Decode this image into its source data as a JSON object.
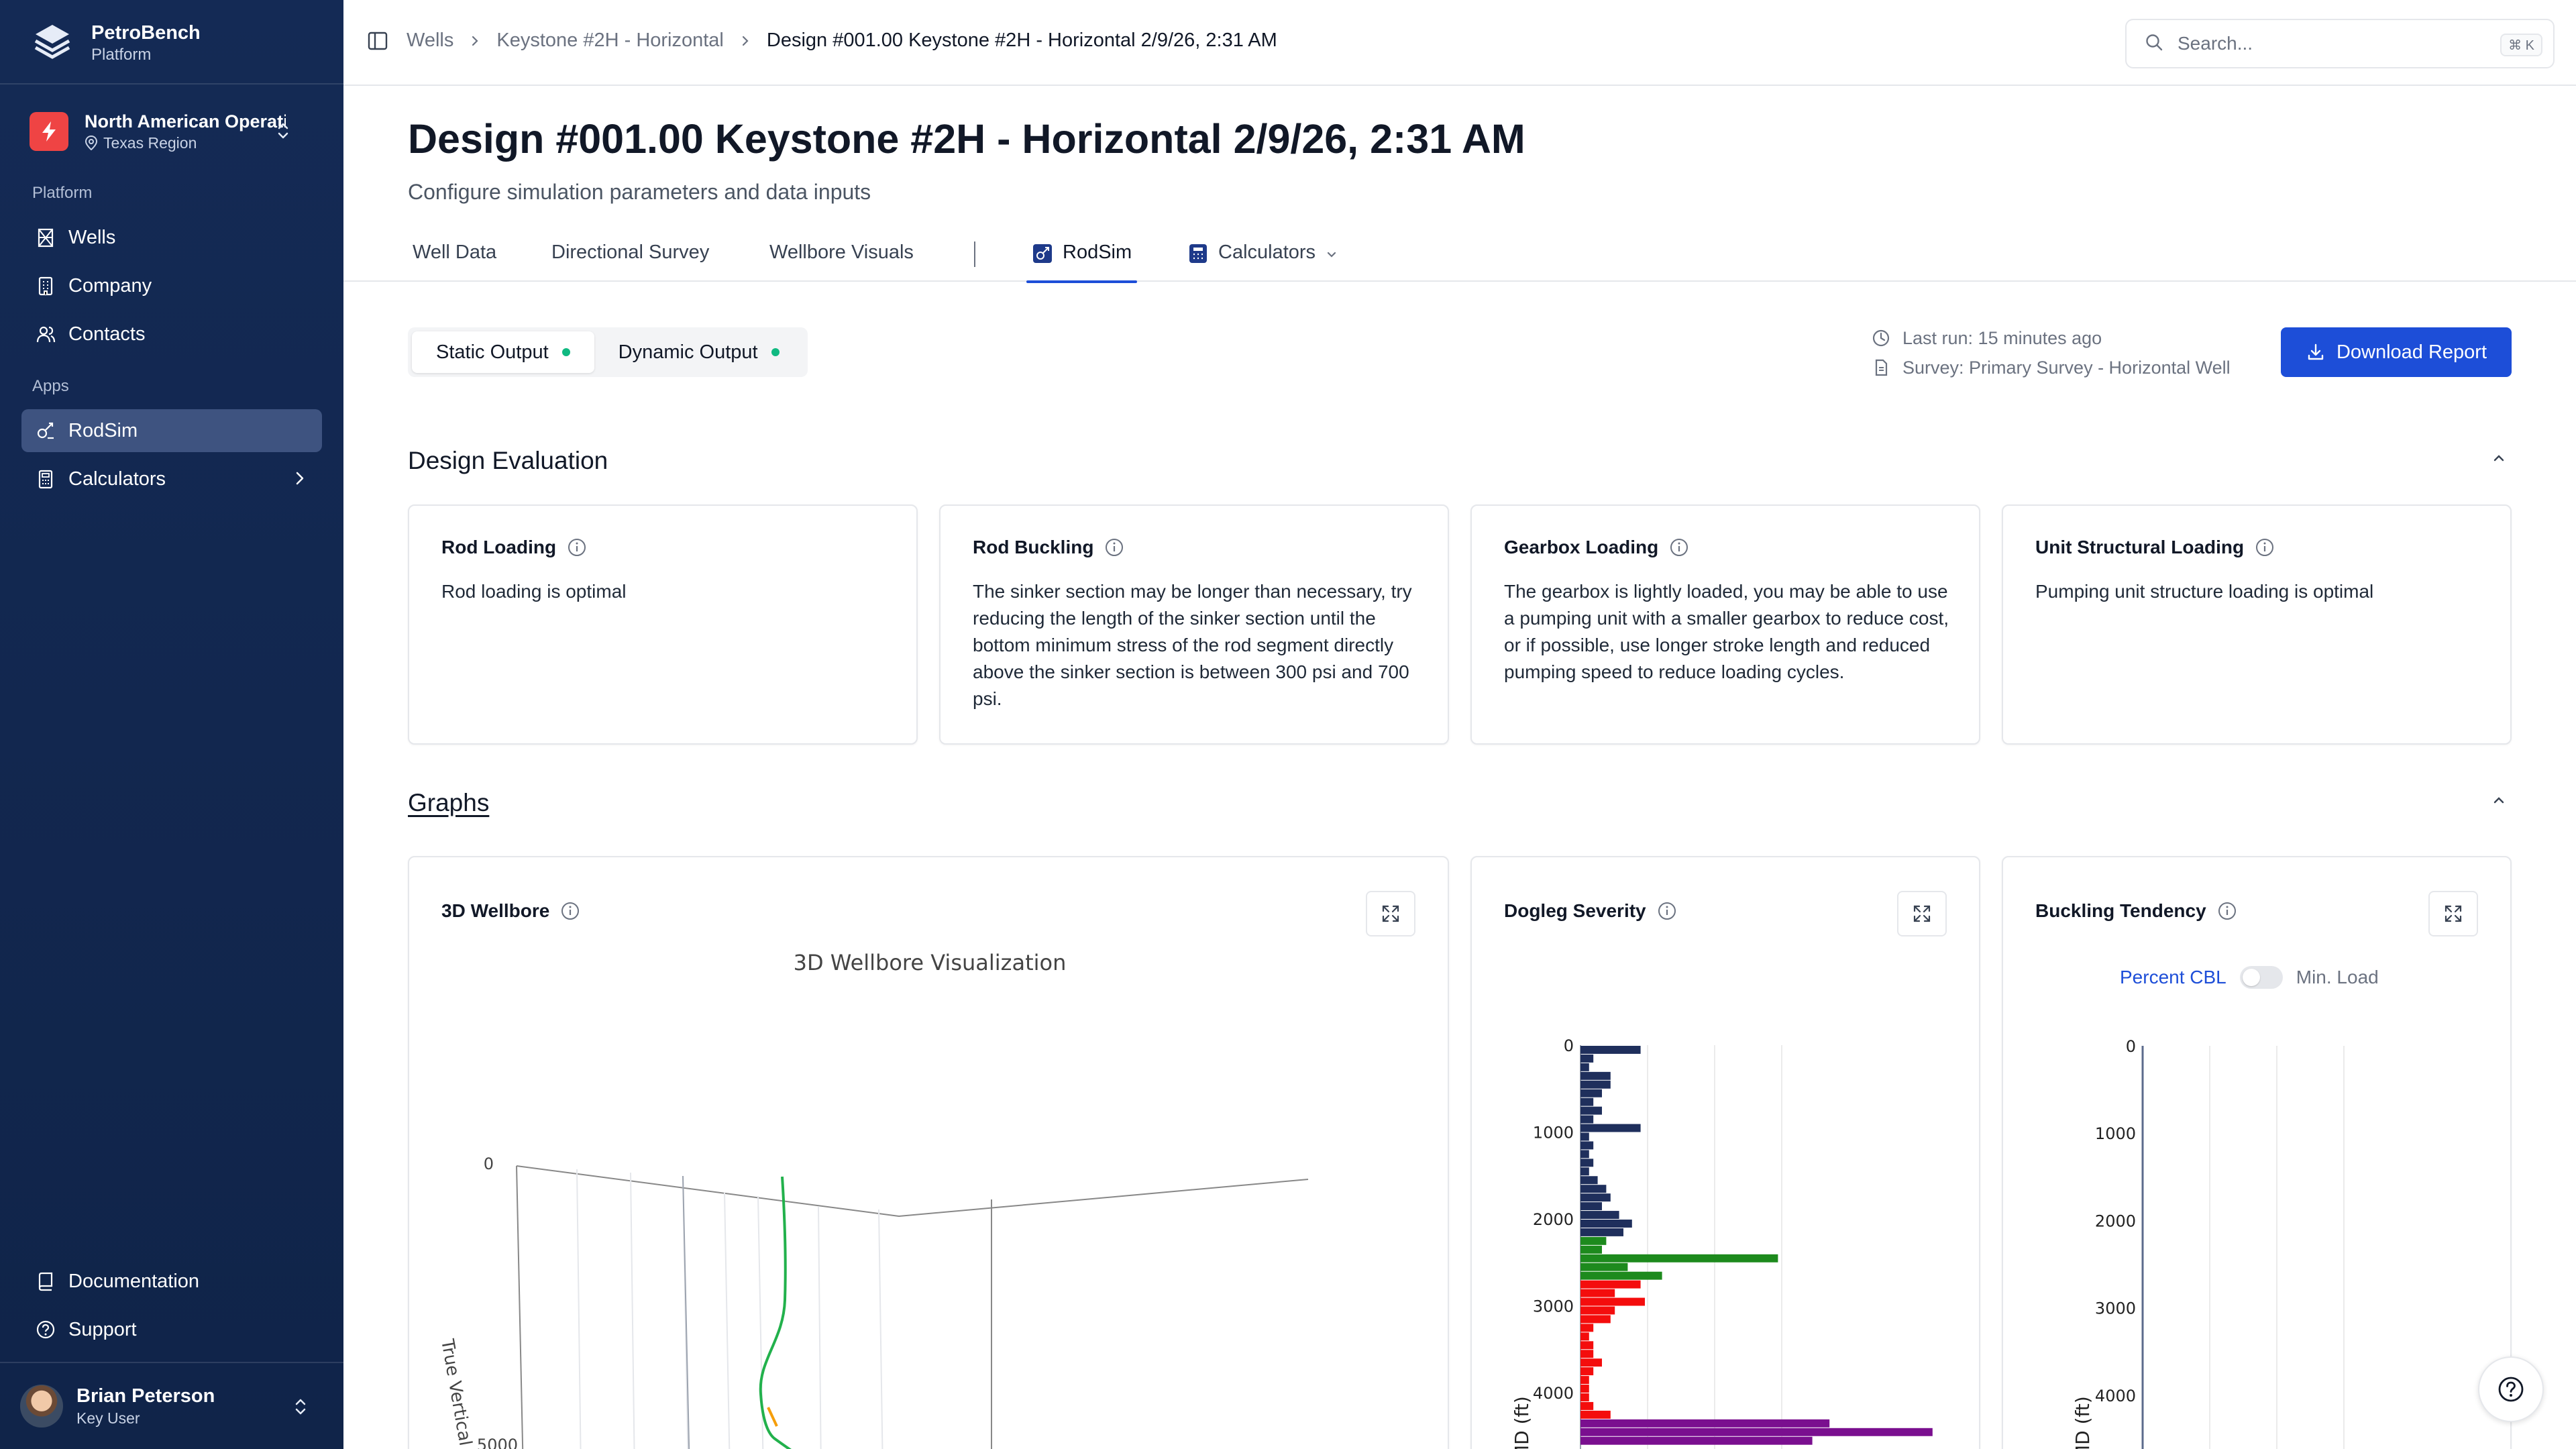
{
  "brand": {
    "name": "PetroBench",
    "subtitle": "Platform"
  },
  "org": {
    "name": "North American Operations",
    "region": "Texas Region"
  },
  "sidebar": {
    "platform_label": "Platform",
    "platform_items": [
      {
        "label": "Wells",
        "icon": "tower-icon"
      },
      {
        "label": "Company",
        "icon": "building-icon"
      },
      {
        "label": "Contacts",
        "icon": "users-icon"
      }
    ],
    "apps_label": "Apps",
    "app_items": [
      {
        "label": "RodSim",
        "icon": "rodsim-icon",
        "active": true
      },
      {
        "label": "Calculators",
        "icon": "calculator-icon",
        "has_submenu": true
      }
    ],
    "footer_items": [
      {
        "label": "Documentation",
        "icon": "book-icon"
      },
      {
        "label": "Support",
        "icon": "help-circle-icon"
      }
    ]
  },
  "user": {
    "name": "Brian Peterson",
    "role": "Key User"
  },
  "breadcrumb": [
    "Wells",
    "Keystone #2H - Horizontal",
    "Design #001.00 Keystone #2H - Horizontal 2/9/26, 2:31 AM"
  ],
  "search": {
    "placeholder": "Search...",
    "shortcut": "⌘ K"
  },
  "page": {
    "title": "Design #001.00 Keystone #2H - Horizontal 2/9/26, 2:31 AM",
    "subtitle": "Configure simulation parameters and data inputs"
  },
  "tabs": [
    {
      "label": "Well Data"
    },
    {
      "label": "Directional Survey"
    },
    {
      "label": "Wellbore Visuals"
    },
    {
      "label": "RodSim",
      "active": true
    },
    {
      "label": "Calculators",
      "dropdown": true
    }
  ],
  "output_toggle": [
    {
      "label": "Static Output",
      "selected": true,
      "status_color": "#10b981"
    },
    {
      "label": "Dynamic Output",
      "selected": false,
      "status_color": "#10b981"
    }
  ],
  "run_meta": {
    "last_run": "Last run: 15 minutes ago",
    "survey": "Survey: Primary Survey - Horizontal Well"
  },
  "download_label": "Download Report",
  "design_evaluation": {
    "title": "Design Evaluation",
    "cards": [
      {
        "title": "Rod Loading",
        "body": "Rod loading is optimal"
      },
      {
        "title": "Rod Buckling",
        "body": "The sinker section may be longer than necessary, try reducing the length of the sinker section until the bottom minimum stress of the rod segment directly above the sinker section is between 300 psi and 700 psi."
      },
      {
        "title": "Gearbox Loading",
        "body": "The gearbox is lightly loaded, you may be able to use a pumping unit with a smaller gearbox to reduce cost, or if possible, use longer stroke length and reduced pumping speed to reduce loading cycles."
      },
      {
        "title": "Unit Structural Loading",
        "body": "Pumping unit structure loading is optimal"
      }
    ]
  },
  "graphs": {
    "title": "Graphs",
    "wellbore": {
      "title": "3D Wellbore",
      "plot_title": "3D Wellbore Visualization",
      "z_axis_label": "True Vertical Depth",
      "z_ticks": [
        "0",
        "5000"
      ]
    },
    "dogleg": {
      "title": "Dogleg Severity",
      "y_label": "MD (ft)",
      "y_ticks": [
        "0",
        "1000",
        "2000",
        "3000",
        "4000"
      ]
    },
    "buckling": {
      "title": "Buckling Tendency",
      "toggle_left": "Percent CBL",
      "toggle_right": "Min. Load",
      "y_label": "MD (ft)",
      "y_ticks": [
        "0",
        "1000",
        "2000",
        "3000",
        "4000"
      ]
    }
  },
  "colors": {
    "sidebar": "#142a55",
    "accent": "#1d4ed8",
    "status": "#10b981"
  },
  "chart_data": [
    {
      "type": "bar",
      "orientation": "horizontal",
      "title": "Dogleg Severity",
      "ylabel": "MD (ft)",
      "ylim": [
        0,
        4700
      ],
      "series": [
        {
          "color": "#1f2f5c",
          "y": [
            100,
            200,
            300,
            400,
            500,
            600,
            700,
            800,
            900,
            1000,
            1100,
            1200,
            1300,
            1400,
            1500,
            1600,
            1700,
            1800,
            1900,
            2000,
            2100,
            2200
          ],
          "values": [
            7,
            1.5,
            1,
            3.5,
            3.5,
            2.5,
            1.5,
            2.5,
            1.5,
            7,
            1,
            1.5,
            1,
            1.5,
            1,
            2,
            3,
            3.5,
            2.5,
            4.5,
            6,
            5
          ]
        },
        {
          "color": "#1d8a1d",
          "y": [
            2300,
            2400,
            2500,
            2600,
            2700
          ],
          "values": [
            3,
            2.5,
            23,
            5.5,
            9.5
          ]
        },
        {
          "color": "#f40d0d",
          "y": [
            2800,
            2900,
            3000,
            3100,
            3200,
            3300,
            3400,
            3500,
            3600,
            3700,
            3800,
            3900,
            4000,
            4100,
            4200,
            4300
          ],
          "values": [
            7,
            4,
            7.5,
            4,
            3.5,
            1.5,
            1,
            1.5,
            1.5,
            2.5,
            1.5,
            1,
            1,
            1,
            1.5,
            3.5
          ]
        },
        {
          "color": "#7a0f8f",
          "y": [
            4400,
            4500,
            4600
          ],
          "values": [
            29,
            41,
            27
          ]
        }
      ]
    },
    {
      "type": "line",
      "title": "Buckling Tendency",
      "ylabel": "MD (ft)",
      "ylim": [
        0,
        4700
      ],
      "series": []
    }
  ]
}
